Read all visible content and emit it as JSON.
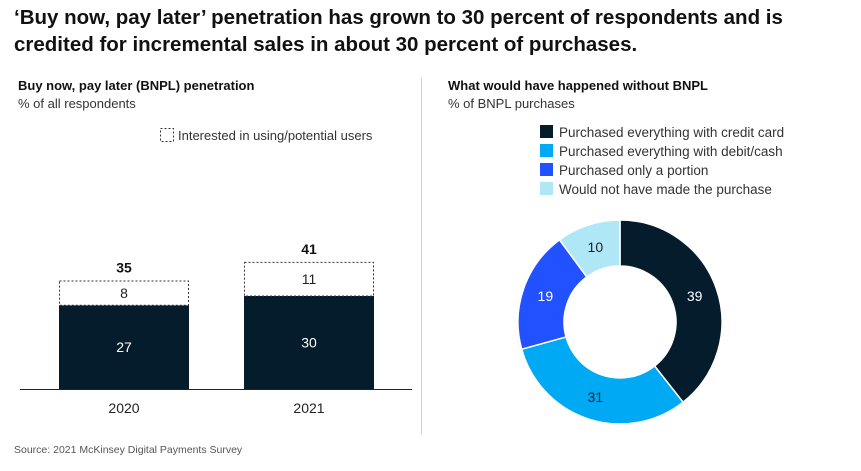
{
  "headline": "‘Buy now, pay later’ penetration has grown to 30 percent of respondents and is credited for incremental sales in about 30 percent of purchases.",
  "source": "Source: 2021 McKinsey Digital Payments Survey",
  "left_panel": {
    "title": "Buy now, pay later (BNPL) penetration",
    "subtitle": "% of all respondents"
  },
  "right_panel": {
    "title": "What would have happened without BNPL",
    "subtitle": "% of BNPL purchases"
  },
  "colors": {
    "dark_navy": "#051c2c",
    "cyan": "#00a9f4",
    "blue": "#2251ff",
    "light_cyan": "#afe7f7"
  },
  "chart_data": [
    {
      "type": "bar",
      "stacked": true,
      "categories": [
        "2020",
        "2021"
      ],
      "series": [
        {
          "name": "",
          "values": [
            27,
            30
          ],
          "color": "#051c2c",
          "style": "solid"
        },
        {
          "name": "Interested in using/potential users",
          "values": [
            8,
            11
          ],
          "color": "#ffffff",
          "style": "dashed-outline"
        }
      ],
      "totals": [
        35,
        41
      ],
      "legend_position": "top-right"
    },
    {
      "type": "pie",
      "donut": true,
      "labels": [
        "Purchased everything with credit card",
        "Purchased everything with debit/cash",
        "Purchased only a portion",
        "Would not have made the purchase"
      ],
      "values": [
        39,
        31,
        19,
        10
      ],
      "colors": [
        "#051c2c",
        "#00a9f4",
        "#2251ff",
        "#afe7f7"
      ],
      "legend_position": "top-right"
    }
  ]
}
